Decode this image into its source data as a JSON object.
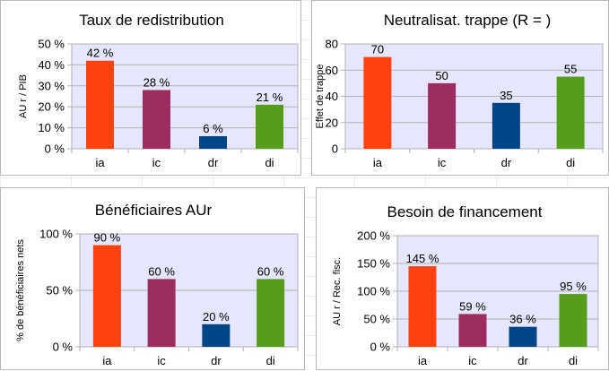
{
  "chart_data": [
    {
      "type": "bar",
      "title": "Taux de redistribution",
      "ylabel": "AU r / PIB",
      "categories": [
        "ia",
        "ic",
        "dr",
        "di"
      ],
      "values": [
        42,
        28,
        6,
        21
      ],
      "data_labels": [
        "42 %",
        "28 %",
        "6 %",
        "21 %"
      ],
      "yticks": [
        "0 %",
        "10 %",
        "20 %",
        "30 %",
        "40 %",
        "50 %"
      ],
      "ylim": [
        0,
        50
      ],
      "grid": true,
      "colors": [
        "#ff420e",
        "#9c2d5e",
        "#004586",
        "#579d1c"
      ],
      "plot_background": "#e6e6ff"
    },
    {
      "type": "bar",
      "title": "Neutralisat. trappe (R =  )",
      "ylabel": "Effet de trappe",
      "categories": [
        "ia",
        "ic",
        "dr",
        "di"
      ],
      "values": [
        70,
        50,
        35,
        55
      ],
      "data_labels": [
        "70",
        "50",
        "35",
        "55"
      ],
      "yticks": [
        "0",
        "20",
        "40",
        "60",
        "80"
      ],
      "ylim": [
        0,
        80
      ],
      "grid": true,
      "colors": [
        "#ff420e",
        "#9c2d5e",
        "#004586",
        "#579d1c"
      ],
      "plot_background": "#e6e6ff"
    },
    {
      "type": "bar",
      "title": "Bénéficiaires AUr",
      "ylabel": "% de bénéficiaires nets",
      "categories": [
        "ia",
        "ic",
        "dr",
        "di"
      ],
      "values": [
        90,
        60,
        20,
        60
      ],
      "data_labels": [
        "90 %",
        "60 %",
        "20 %",
        "60 %"
      ],
      "yticks": [
        "0 %",
        "50 %",
        "100 %"
      ],
      "ylim": [
        0,
        100
      ],
      "grid": true,
      "colors": [
        "#ff420e",
        "#9c2d5e",
        "#004586",
        "#579d1c"
      ],
      "plot_background": "#e6e6ff"
    },
    {
      "type": "bar",
      "title": "Besoin de financement",
      "ylabel": "AU r / Rec. fisc.",
      "categories": [
        "ia",
        "ic",
        "dr",
        "di"
      ],
      "values": [
        145,
        59,
        36,
        95
      ],
      "data_labels": [
        "145 %",
        "59 %",
        "36 %",
        "95 %"
      ],
      "yticks": [
        "0 %",
        "50 %",
        "100 %",
        "150 %",
        "200 %"
      ],
      "ylim": [
        0,
        200
      ],
      "grid": true,
      "colors": [
        "#ff420e",
        "#9c2d5e",
        "#004586",
        "#579d1c"
      ],
      "plot_background": "#e6e6ff"
    }
  ]
}
